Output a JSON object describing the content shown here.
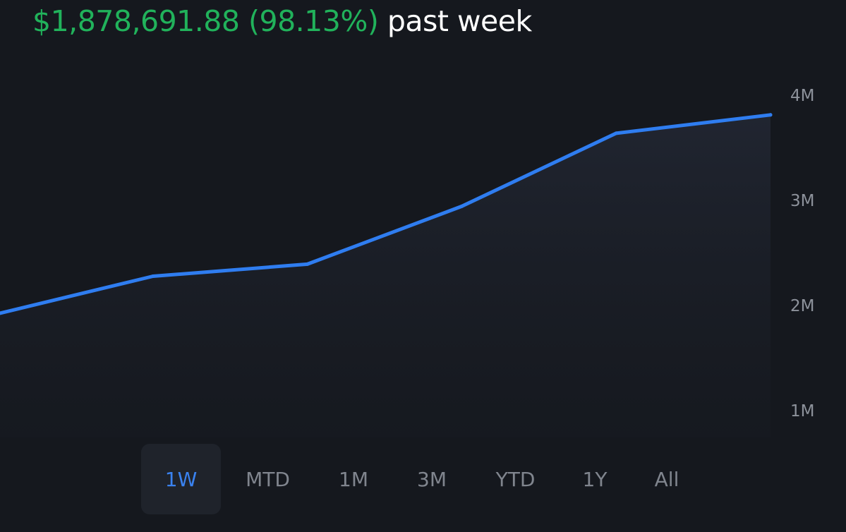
{
  "header": {
    "change": "$1,878,691.88 (98.13%)",
    "period": "past week"
  },
  "colors": {
    "background": "#15181e",
    "line": "#2f7df0",
    "gain": "#21b25b",
    "active_tab": "#3a82f0",
    "inactive_tab": "#80858e"
  },
  "range_tabs": [
    {
      "label": "1W",
      "active": true
    },
    {
      "label": "MTD",
      "active": false
    },
    {
      "label": "1M",
      "active": false
    },
    {
      "label": "3M",
      "active": false
    },
    {
      "label": "YTD",
      "active": false
    },
    {
      "label": "1Y",
      "active": false
    },
    {
      "label": "All",
      "active": false
    }
  ],
  "chart_data": {
    "type": "area",
    "x": [
      1,
      2,
      3,
      4,
      5,
      6
    ],
    "values": [
      1910000,
      2265000,
      2380000,
      2930000,
      3625000,
      3800000
    ],
    "y_ticks": [
      {
        "value": 4000000,
        "label": "4M"
      },
      {
        "value": 3000000,
        "label": "3M"
      },
      {
        "value": 2000000,
        "label": "2M"
      },
      {
        "value": 1000000,
        "label": "1M"
      }
    ],
    "ylim": [
      1000000,
      4000000
    ],
    "grid": false
  }
}
